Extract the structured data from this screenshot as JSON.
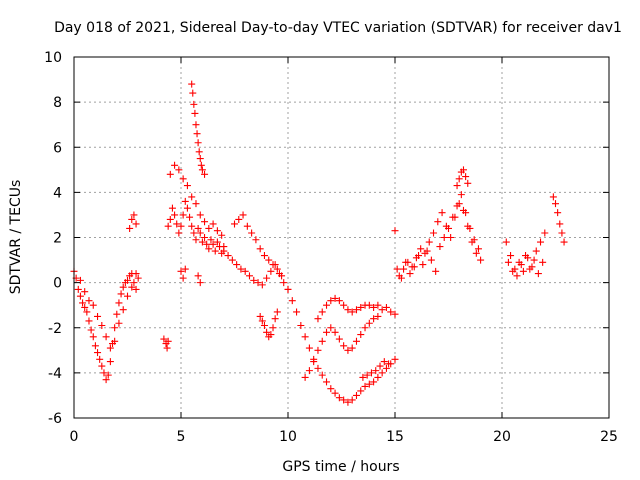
{
  "chart_data": {
    "type": "scatter",
    "title": "Day 018 of 2021, Sidereal Day-to-day VTEC variation (SDTVAR) for receiver dav1",
    "xlabel": "GPS time / hours",
    "ylabel": "SDTVAR / TECUs",
    "xlim": [
      0,
      25
    ],
    "ylim": [
      -6,
      10
    ],
    "xticks": [
      "0",
      "5",
      "10",
      "15",
      "20",
      "25"
    ],
    "yticks": [
      "-6",
      "-4",
      "-2",
      "0",
      "2",
      "4",
      "6",
      "8",
      "10"
    ],
    "grid": true,
    "marker": "+",
    "marker_color": "#ff0000",
    "series": [
      {
        "name": "SDTVAR dav1",
        "x": [
          0.0,
          0.1,
          0.2,
          0.3,
          0.4,
          0.5,
          0.6,
          0.7,
          0.8,
          0.9,
          1.0,
          1.1,
          1.2,
          1.3,
          1.4,
          1.5,
          1.6,
          1.7,
          1.8,
          1.9,
          2.0,
          2.1,
          2.2,
          2.3,
          2.4,
          2.5,
          2.6,
          2.7,
          2.8,
          2.9,
          3.0,
          0.3,
          0.5,
          0.7,
          0.9,
          1.1,
          1.3,
          1.5,
          1.7,
          1.9,
          2.1,
          2.3,
          2.5,
          2.7,
          2.9,
          2.6,
          2.7,
          2.8,
          2.9,
          4.2,
          4.3,
          4.35,
          4.4,
          4.4,
          4.5,
          4.6,
          4.7,
          4.8,
          4.9,
          5.0,
          5.1,
          5.2,
          5.3,
          5.4,
          5.5,
          5.6,
          5.7,
          5.8,
          5.9,
          6.0,
          6.1,
          6.2,
          6.3,
          6.4,
          6.5,
          6.6,
          6.7,
          6.8,
          6.9,
          7.0,
          4.5,
          4.7,
          4.9,
          5.1,
          5.3,
          5.5,
          5.7,
          5.9,
          6.1,
          6.3,
          6.5,
          6.7,
          6.9,
          5.5,
          5.55,
          5.6,
          5.65,
          5.7,
          5.75,
          5.8,
          5.85,
          5.9,
          5.95,
          6.0,
          6.1,
          5.0,
          5.1,
          5.2,
          5.8,
          5.9,
          7.0,
          7.2,
          7.4,
          7.6,
          7.8,
          8.0,
          8.2,
          8.4,
          8.6,
          8.8,
          9.0,
          9.2,
          9.4,
          9.6,
          9.8,
          10.0,
          7.5,
          7.7,
          7.9,
          8.1,
          8.3,
          8.5,
          8.7,
          8.9,
          9.1,
          9.3,
          9.5,
          9.7,
          8.7,
          8.8,
          8.9,
          9.0,
          9.1,
          9.2,
          9.3,
          9.4,
          9.5,
          10.0,
          10.2,
          10.4,
          10.6,
          10.8,
          11.0,
          11.2,
          11.4,
          11.6,
          11.8,
          12.0,
          12.2,
          12.4,
          12.6,
          12.8,
          13.0,
          13.2,
          13.4,
          13.6,
          13.8,
          14.0,
          14.2,
          14.4,
          14.6,
          14.8,
          15.0,
          10.8,
          11.0,
          11.2,
          11.4,
          11.6,
          11.8,
          12.0,
          12.2,
          12.4,
          12.6,
          12.8,
          13.0,
          13.2,
          13.4,
          13.6,
          13.8,
          14.0,
          14.2,
          11.4,
          11.6,
          11.8,
          12.0,
          12.2,
          12.4,
          12.6,
          12.8,
          13.0,
          13.2,
          13.4,
          13.6,
          13.8,
          14.0,
          14.2,
          14.4,
          14.6,
          14.8,
          15.0,
          13.5,
          13.7,
          13.9,
          14.1,
          14.3,
          14.5,
          14.7,
          15.0,
          15.2,
          15.4,
          15.6,
          15.8,
          16.0,
          16.2,
          16.4,
          16.6,
          16.8,
          17.0,
          17.2,
          17.4,
          17.6,
          17.8,
          18.0,
          18.2,
          18.4,
          18.6,
          18.8,
          19.0,
          15.1,
          15.3,
          15.5,
          15.7,
          15.9,
          16.1,
          16.3,
          16.5,
          16.7,
          16.9,
          17.1,
          17.3,
          17.5,
          17.7,
          17.9,
          18.1,
          18.3,
          18.5,
          18.7,
          18.9,
          17.9,
          18.0,
          18.1,
          18.2,
          18.3,
          18.4,
          20.2,
          20.4,
          20.6,
          20.8,
          21.0,
          21.2,
          21.4,
          21.6,
          21.8,
          22.0,
          20.3,
          20.5,
          20.7,
          20.9,
          21.1,
          21.3,
          21.5,
          21.7,
          21.9,
          22.4,
          22.5,
          22.6,
          22.7,
          22.8,
          22.9
        ],
        "y": [
          0.5,
          0.2,
          -0.3,
          -0.6,
          -0.9,
          -1.1,
          -1.3,
          -1.7,
          -2.1,
          -2.4,
          -2.8,
          -3.1,
          -3.4,
          -3.7,
          -4.0,
          -4.3,
          -4.1,
          -3.5,
          -2.7,
          -2.0,
          -1.4,
          -0.9,
          -0.5,
          -0.2,
          0.0,
          0.1,
          0.3,
          0.4,
          0.0,
          -0.3,
          0.2,
          0.1,
          -0.4,
          -0.8,
          -1.0,
          -1.5,
          -1.9,
          -2.4,
          -2.9,
          -2.6,
          -1.8,
          -1.2,
          -0.6,
          -0.2,
          0.4,
          2.4,
          2.8,
          3.0,
          2.6,
          -2.5,
          -2.7,
          -2.9,
          -2.6,
          2.5,
          2.8,
          3.3,
          3.0,
          2.6,
          2.2,
          2.5,
          3.0,
          3.6,
          3.3,
          2.9,
          2.5,
          2.2,
          1.9,
          2.4,
          2.2,
          1.8,
          2.0,
          1.7,
          1.5,
          1.9,
          1.7,
          1.4,
          1.8,
          1.6,
          1.3,
          1.6,
          4.8,
          5.2,
          5.0,
          4.6,
          4.3,
          3.8,
          3.5,
          3.0,
          2.7,
          2.4,
          2.6,
          2.3,
          2.1,
          8.8,
          8.4,
          7.9,
          7.5,
          7.0,
          6.6,
          6.2,
          5.8,
          5.5,
          5.2,
          5.0,
          4.8,
          0.5,
          0.2,
          0.6,
          0.3,
          0.0,
          1.4,
          1.2,
          1.0,
          0.8,
          0.6,
          0.5,
          0.3,
          0.1,
          0.0,
          -0.1,
          0.2,
          0.5,
          0.8,
          0.4,
          0.0,
          -0.3,
          2.6,
          2.8,
          3.0,
          2.5,
          2.2,
          1.9,
          1.5,
          1.2,
          1.0,
          0.8,
          0.6,
          0.3,
          -1.5,
          -1.7,
          -1.9,
          -2.2,
          -2.4,
          -2.3,
          -2.0,
          -1.6,
          -1.3,
          -0.3,
          -0.8,
          -1.3,
          -1.9,
          -2.4,
          -2.9,
          -3.4,
          -3.8,
          -4.1,
          -4.4,
          -4.7,
          -4.9,
          -5.1,
          -5.2,
          -5.3,
          -5.2,
          -5.0,
          -4.8,
          -4.6,
          -4.5,
          -4.4,
          -4.2,
          -4.0,
          -3.8,
          -3.6,
          -3.4,
          -4.2,
          -3.9,
          -3.5,
          -3.0,
          -2.6,
          -2.2,
          -2.0,
          -2.2,
          -2.5,
          -2.8,
          -3.0,
          -2.9,
          -2.6,
          -2.3,
          -2.0,
          -1.8,
          -1.6,
          -1.5,
          -1.6,
          -1.3,
          -1.0,
          -0.8,
          -0.7,
          -0.8,
          -1.0,
          -1.2,
          -1.3,
          -1.2,
          -1.1,
          -1.0,
          -1.0,
          -1.1,
          -1.0,
          -1.2,
          -1.1,
          -1.3,
          -1.4,
          -4.2,
          -4.1,
          -4.0,
          -3.9,
          -3.7,
          -3.5,
          -3.6,
          2.3,
          0.3,
          0.6,
          0.9,
          0.7,
          1.1,
          1.5,
          1.3,
          1.8,
          2.2,
          2.7,
          3.1,
          2.5,
          2.0,
          2.9,
          3.5,
          3.2,
          2.5,
          1.8,
          1.3,
          1.0,
          0.6,
          0.2,
          0.9,
          0.4,
          0.7,
          1.2,
          0.8,
          1.4,
          1.0,
          0.5,
          1.6,
          2.0,
          2.4,
          2.9,
          3.4,
          3.9,
          3.1,
          2.4,
          1.9,
          1.5,
          4.3,
          4.6,
          4.9,
          5.0,
          4.7,
          4.4,
          1.8,
          1.2,
          0.6,
          0.9,
          0.5,
          1.1,
          0.7,
          1.4,
          1.8,
          2.2,
          0.9,
          0.5,
          0.3,
          0.8,
          1.2,
          0.6,
          1.0,
          0.4,
          0.9,
          3.8,
          3.5,
          3.1,
          2.6,
          2.2,
          1.8
        ]
      }
    ]
  }
}
